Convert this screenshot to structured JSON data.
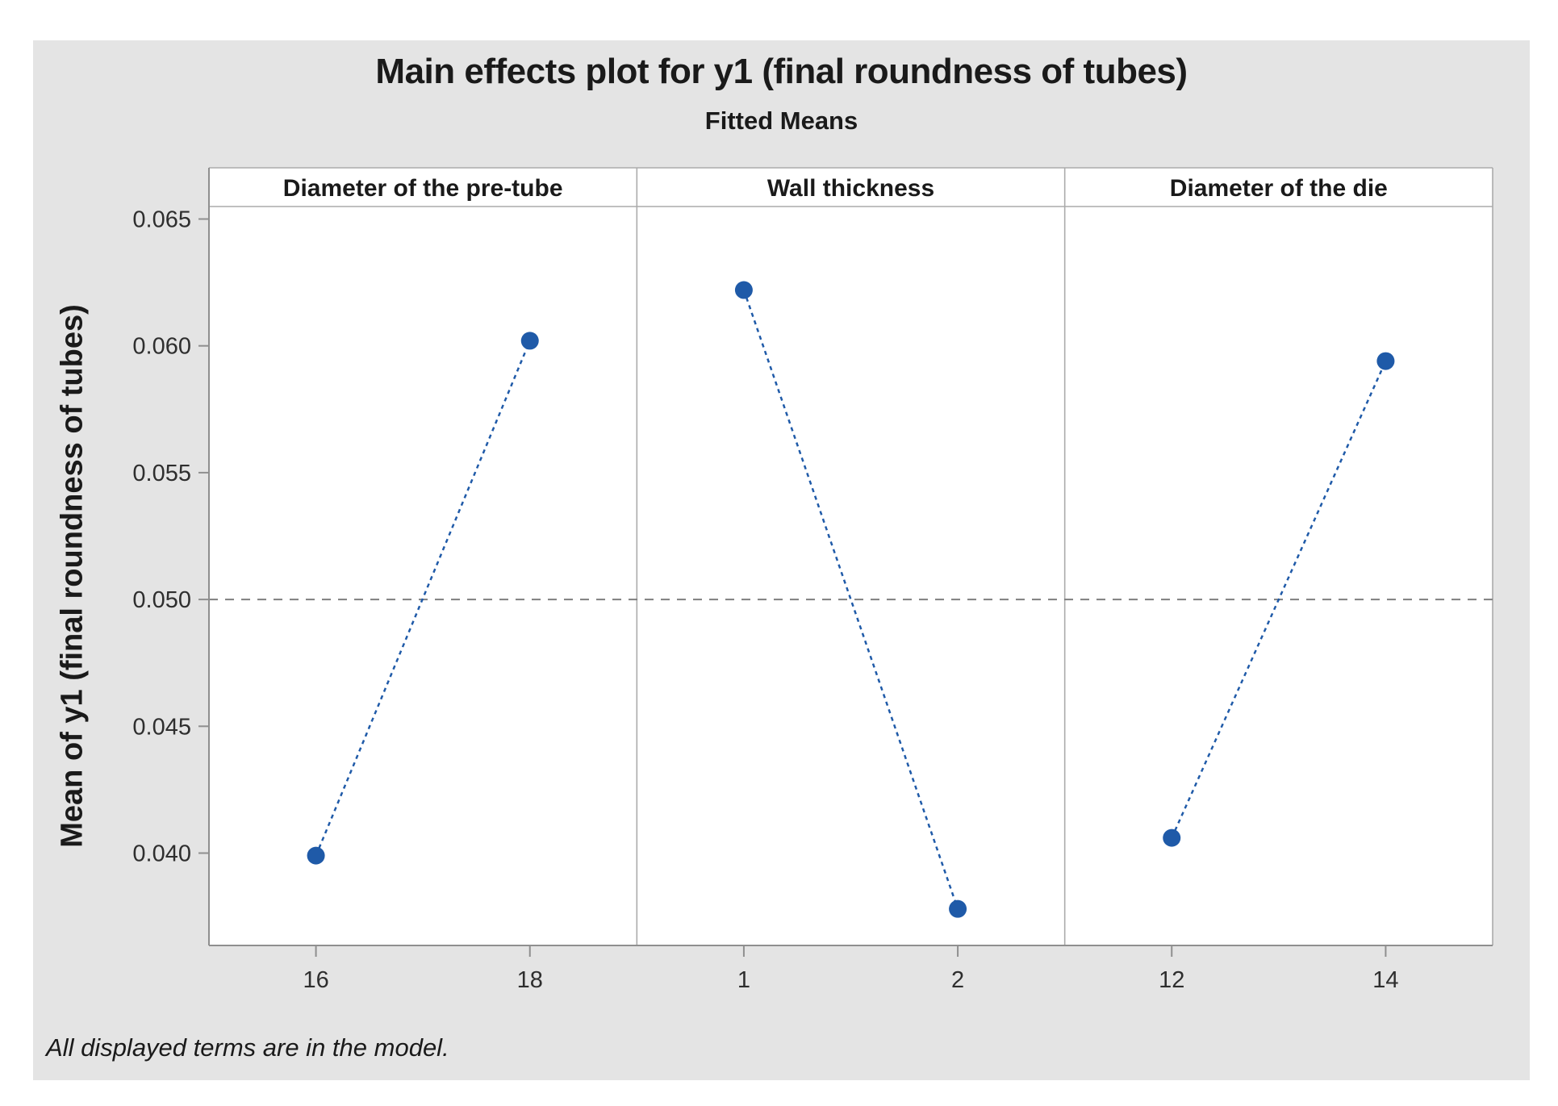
{
  "chart_data": {
    "type": "line",
    "title": "Main effects plot for y1 (final roundness of tubes)",
    "subtitle": "Fitted Means",
    "ylabel": "Mean of y1 (final roundness of tubes)",
    "footnote": "All displayed terms are in the model.",
    "y_ticks": [
      0.04,
      0.045,
      0.05,
      0.055,
      0.06,
      0.065
    ],
    "ylim": [
      0.0364,
      0.0655
    ],
    "y_tick_decimals": 3,
    "reference_line": 0.05,
    "panels": [
      {
        "header": "Diameter of the pre-tube",
        "categories": [
          "16",
          "18"
        ],
        "values": [
          0.0399,
          0.0602
        ]
      },
      {
        "header": "Wall thickness",
        "categories": [
          "1",
          "2"
        ],
        "values": [
          0.0622,
          0.0378
        ]
      },
      {
        "header": "Diameter of the die",
        "categories": [
          "12",
          "14"
        ],
        "values": [
          0.0406,
          0.0594
        ]
      }
    ],
    "grid": false,
    "legend": "none",
    "colors": {
      "series": "#1f5aa8",
      "reference_line": "#7f7f7f",
      "axis": "#8f8f8f",
      "panel_border": "#ababab",
      "plot_background": "#ffffff",
      "card_background": "#e4e4e4",
      "text": "#1a1a1a",
      "tick_text": "#2e2e2e"
    }
  }
}
